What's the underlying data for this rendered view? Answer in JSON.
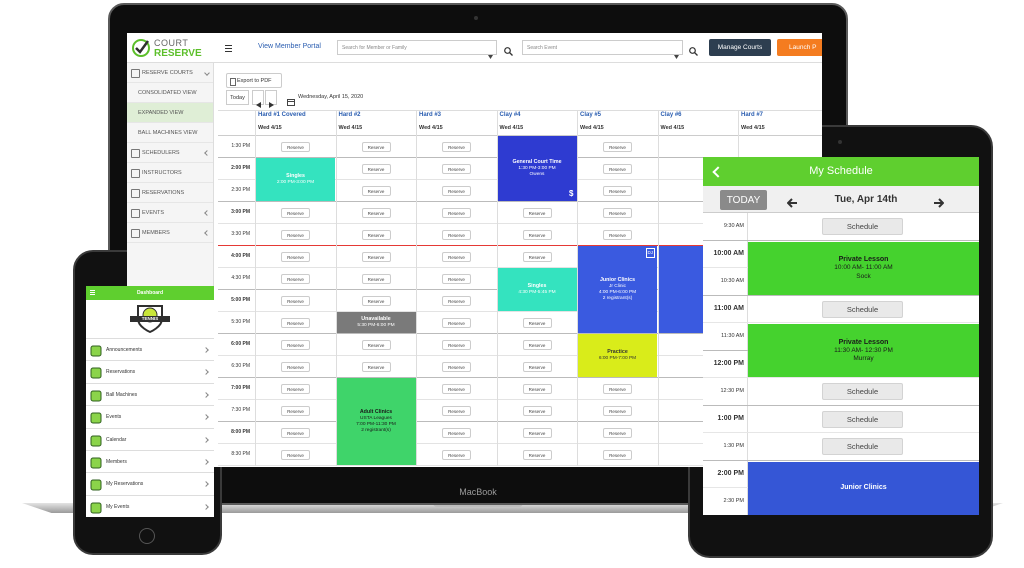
{
  "laptop": {
    "brand": "MacBook",
    "logo": {
      "line1": "COURT",
      "line2": "RESERVE"
    },
    "nav": {
      "member_portal": "View Member Portal",
      "member_search": "Search for Member or Family",
      "event_search": "Search Event",
      "manage_courts": "Manage Courts",
      "launch": "Launch P"
    },
    "sidebar": [
      {
        "label": "RESERVE COURTS",
        "submenu": true
      },
      {
        "label": "CONSOLIDATED VIEW",
        "sub": true
      },
      {
        "label": "EXPANDED VIEW",
        "sub": true,
        "active": true
      },
      {
        "label": "BALL MACHINES VIEW",
        "sub": true
      },
      {
        "label": "SCHEDULERS",
        "submenu": true
      },
      {
        "label": "INSTRUCTORS"
      },
      {
        "label": "RESERVATIONS"
      },
      {
        "label": "EVENTS",
        "submenu": true
      },
      {
        "label": "MEMBERS",
        "submenu": true
      }
    ],
    "toolbar": {
      "export": "Export to PDF",
      "today": "Today",
      "date": "Wednesday, April 15, 2020"
    },
    "times": [
      "1:30 PM",
      "2:00 PM",
      "2:30 PM",
      "3:00 PM",
      "3:30 PM",
      "4:00 PM",
      "4:30 PM",
      "5:00 PM",
      "5:30 PM",
      "6:00 PM",
      "6:30 PM",
      "7:00 PM",
      "7:30 PM",
      "8:00 PM",
      "8:30 PM"
    ],
    "courts": [
      {
        "name": "Hard #1 Covered",
        "date": "Wed 4/15",
        "cells": [
          "Reserve",
          {
            "lines": [
              "Singles",
              "2:00 PM-3:00 PM"
            ],
            "color": "#34e3bf",
            "text_color": "#ffffff"
          },
          null,
          "Reserve",
          "Reserve",
          "Reserve",
          "Reserve",
          "Reserve",
          "Reserve",
          "Reserve",
          "Reserve",
          "Reserve",
          "Reserve",
          "Reserve",
          "Reserve"
        ]
      },
      {
        "name": "Hard #2",
        "date": "Wed 4/15",
        "cells": [
          "Reserve",
          "Reserve",
          "Reserve",
          "Reserve",
          "Reserve",
          "Reserve",
          "Reserve",
          "Reserve",
          {
            "lines": [
              "Unavailable",
              "5:30 PM-6:00 PM"
            ],
            "color": "#7a7a7a",
            "text_color": "#ffffff"
          },
          "Reserve",
          "Reserve",
          {
            "lines": [
              "Adult Clinics",
              "USTA Leagues",
              "7:00 PM-11:30 PM",
              "2 registrant(s)"
            ],
            "color": "#3fd46a",
            "text_color": "#1a1a1a"
          },
          null,
          null,
          null
        ]
      },
      {
        "name": "Hard #3",
        "date": "Wed 4/15",
        "cells": [
          "Reserve",
          "Reserve",
          "Reserve",
          "Reserve",
          "Reserve",
          "Reserve",
          "Reserve",
          "Reserve",
          "Reserve",
          "Reserve",
          "Reserve",
          "Reserve",
          "Reserve",
          "Reserve",
          "Reserve"
        ]
      },
      {
        "name": "Clay #4",
        "date": "Wed 4/15",
        "cells": [
          {
            "lines": [
              "General Court Time",
              "1:30 PM-3:00 PM",
              "Owens"
            ],
            "color": "#2e3bd1",
            "text_color": "#ffffff",
            "badge": "$"
          },
          null,
          null,
          "Reserve",
          "Reserve",
          "Reserve",
          {
            "lines": [
              "Singles",
              "4:30 PM-5:45 PM"
            ],
            "color": "#34e3bf",
            "text_color": "#ffffff"
          },
          null,
          "Reserve",
          "Reserve",
          "Reserve",
          "Reserve",
          "Reserve",
          "Reserve",
          "Reserve"
        ]
      },
      {
        "name": "Clay #5",
        "date": "Wed 4/15",
        "cells": [
          "Reserve",
          "Reserve",
          "Reserve",
          "Reserve",
          "Reserve",
          {
            "lines": [
              "Junior Clinics",
              "Jr Clinic",
              "4:00 PM-6:00 PM",
              "2 registrant(s)"
            ],
            "color": "#3a5ae0",
            "text_color": "#ffffff",
            "badge": "DJ"
          },
          null,
          null,
          null,
          {
            "lines": [
              "Practice",
              "6:00 PM-7:00 PM"
            ],
            "color": "#d9ec1a",
            "text_color": "#333333"
          },
          null,
          "Reserve",
          "Reserve",
          "Reserve",
          "Reserve"
        ]
      },
      {
        "name": "Clay #6",
        "date": "Wed 4/15",
        "cells": [
          null,
          null,
          null,
          null,
          null,
          {
            "color": "#3a5ae0"
          },
          null,
          null,
          null
        ]
      },
      {
        "name": "Hard #7",
        "date": "Wed 4/15",
        "cells": []
      }
    ]
  },
  "tablet": {
    "title": "My Schedule",
    "today": "TODAY",
    "date": "Tue, Apr 14th",
    "times": [
      "9:30 AM",
      "10:00 AM",
      "10:30 AM",
      "11:00 AM",
      "11:30 AM",
      "12:00 PM",
      "12:30 PM",
      "1:00 PM",
      "1:30 PM",
      "2:00 PM",
      "2:30 PM"
    ],
    "cells": [
      "Schedule",
      {
        "lines": [
          "Private Lesson",
          "10:00 AM- 11:00 AM",
          "Sock"
        ],
        "color": "#45d22e",
        "text_color": "#1a1a1a"
      },
      null,
      "Schedule",
      {
        "lines": [
          "Private Lesson",
          "11:30 AM- 12:30 PM",
          "Murray"
        ],
        "color": "#45d22e",
        "text_color": "#1a1a1a"
      },
      null,
      "Schedule",
      "Schedule",
      "Schedule",
      {
        "lines": [
          "Junior Clinics"
        ],
        "color": "#3556d6",
        "text_color": "#ffffff"
      },
      null
    ]
  },
  "phone": {
    "title": "Dashboard",
    "logo": "TENNIS",
    "menu": [
      "Announcements",
      "Reservations",
      "Ball Machines",
      "Events",
      "Calendar",
      "Members",
      "My Reservations",
      "My Events"
    ]
  }
}
